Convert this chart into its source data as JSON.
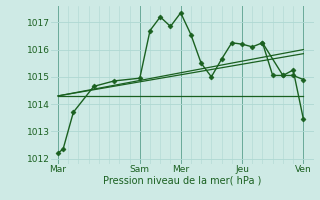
{
  "background_color": "#ceeae5",
  "grid_color": "#aed8d2",
  "line_color": "#1a6020",
  "title": "Pression niveau de la mer( hPa )",
  "ylim": [
    1011.8,
    1017.6
  ],
  "yticks": [
    1012,
    1013,
    1014,
    1015,
    1016,
    1017
  ],
  "day_labels": [
    "Mar",
    "Sam",
    "Mer",
    "Jeu",
    "Ven"
  ],
  "day_positions": [
    0,
    96,
    144,
    216,
    288
  ],
  "xlim": [
    -8,
    300
  ],
  "lines": [
    {
      "x": [
        0,
        6,
        18,
        42,
        66,
        96,
        108,
        120,
        132,
        144,
        156,
        168,
        180,
        192,
        204,
        216,
        228,
        240,
        264,
        276,
        288
      ],
      "y": [
        1012.2,
        1012.35,
        1013.7,
        1014.65,
        1014.85,
        1014.95,
        1016.7,
        1017.2,
        1016.85,
        1017.35,
        1016.55,
        1015.5,
        1015.0,
        1015.65,
        1016.25,
        1016.2,
        1016.1,
        1016.25,
        1015.05,
        1015.05,
        1014.9
      ],
      "marker": "D",
      "markersize": 2.5,
      "linewidth": 1.0,
      "has_marker": true
    },
    {
      "x": [
        0,
        288
      ],
      "y": [
        1014.3,
        1014.3
      ],
      "marker": null,
      "markersize": 0,
      "linewidth": 0.9,
      "has_marker": false
    },
    {
      "x": [
        0,
        288
      ],
      "y": [
        1014.3,
        1016.0
      ],
      "marker": null,
      "markersize": 0,
      "linewidth": 0.9,
      "has_marker": false
    },
    {
      "x": [
        0,
        288
      ],
      "y": [
        1014.3,
        1015.85
      ],
      "marker": null,
      "markersize": 0,
      "linewidth": 0.9,
      "has_marker": false
    },
    {
      "x": [
        240,
        252,
        264,
        276,
        288
      ],
      "y": [
        1016.25,
        1015.05,
        1015.05,
        1015.25,
        1013.45
      ],
      "marker": "D",
      "markersize": 2.5,
      "linewidth": 1.0,
      "has_marker": true
    }
  ],
  "title_fontsize": 7,
  "tick_fontsize": 6.5
}
